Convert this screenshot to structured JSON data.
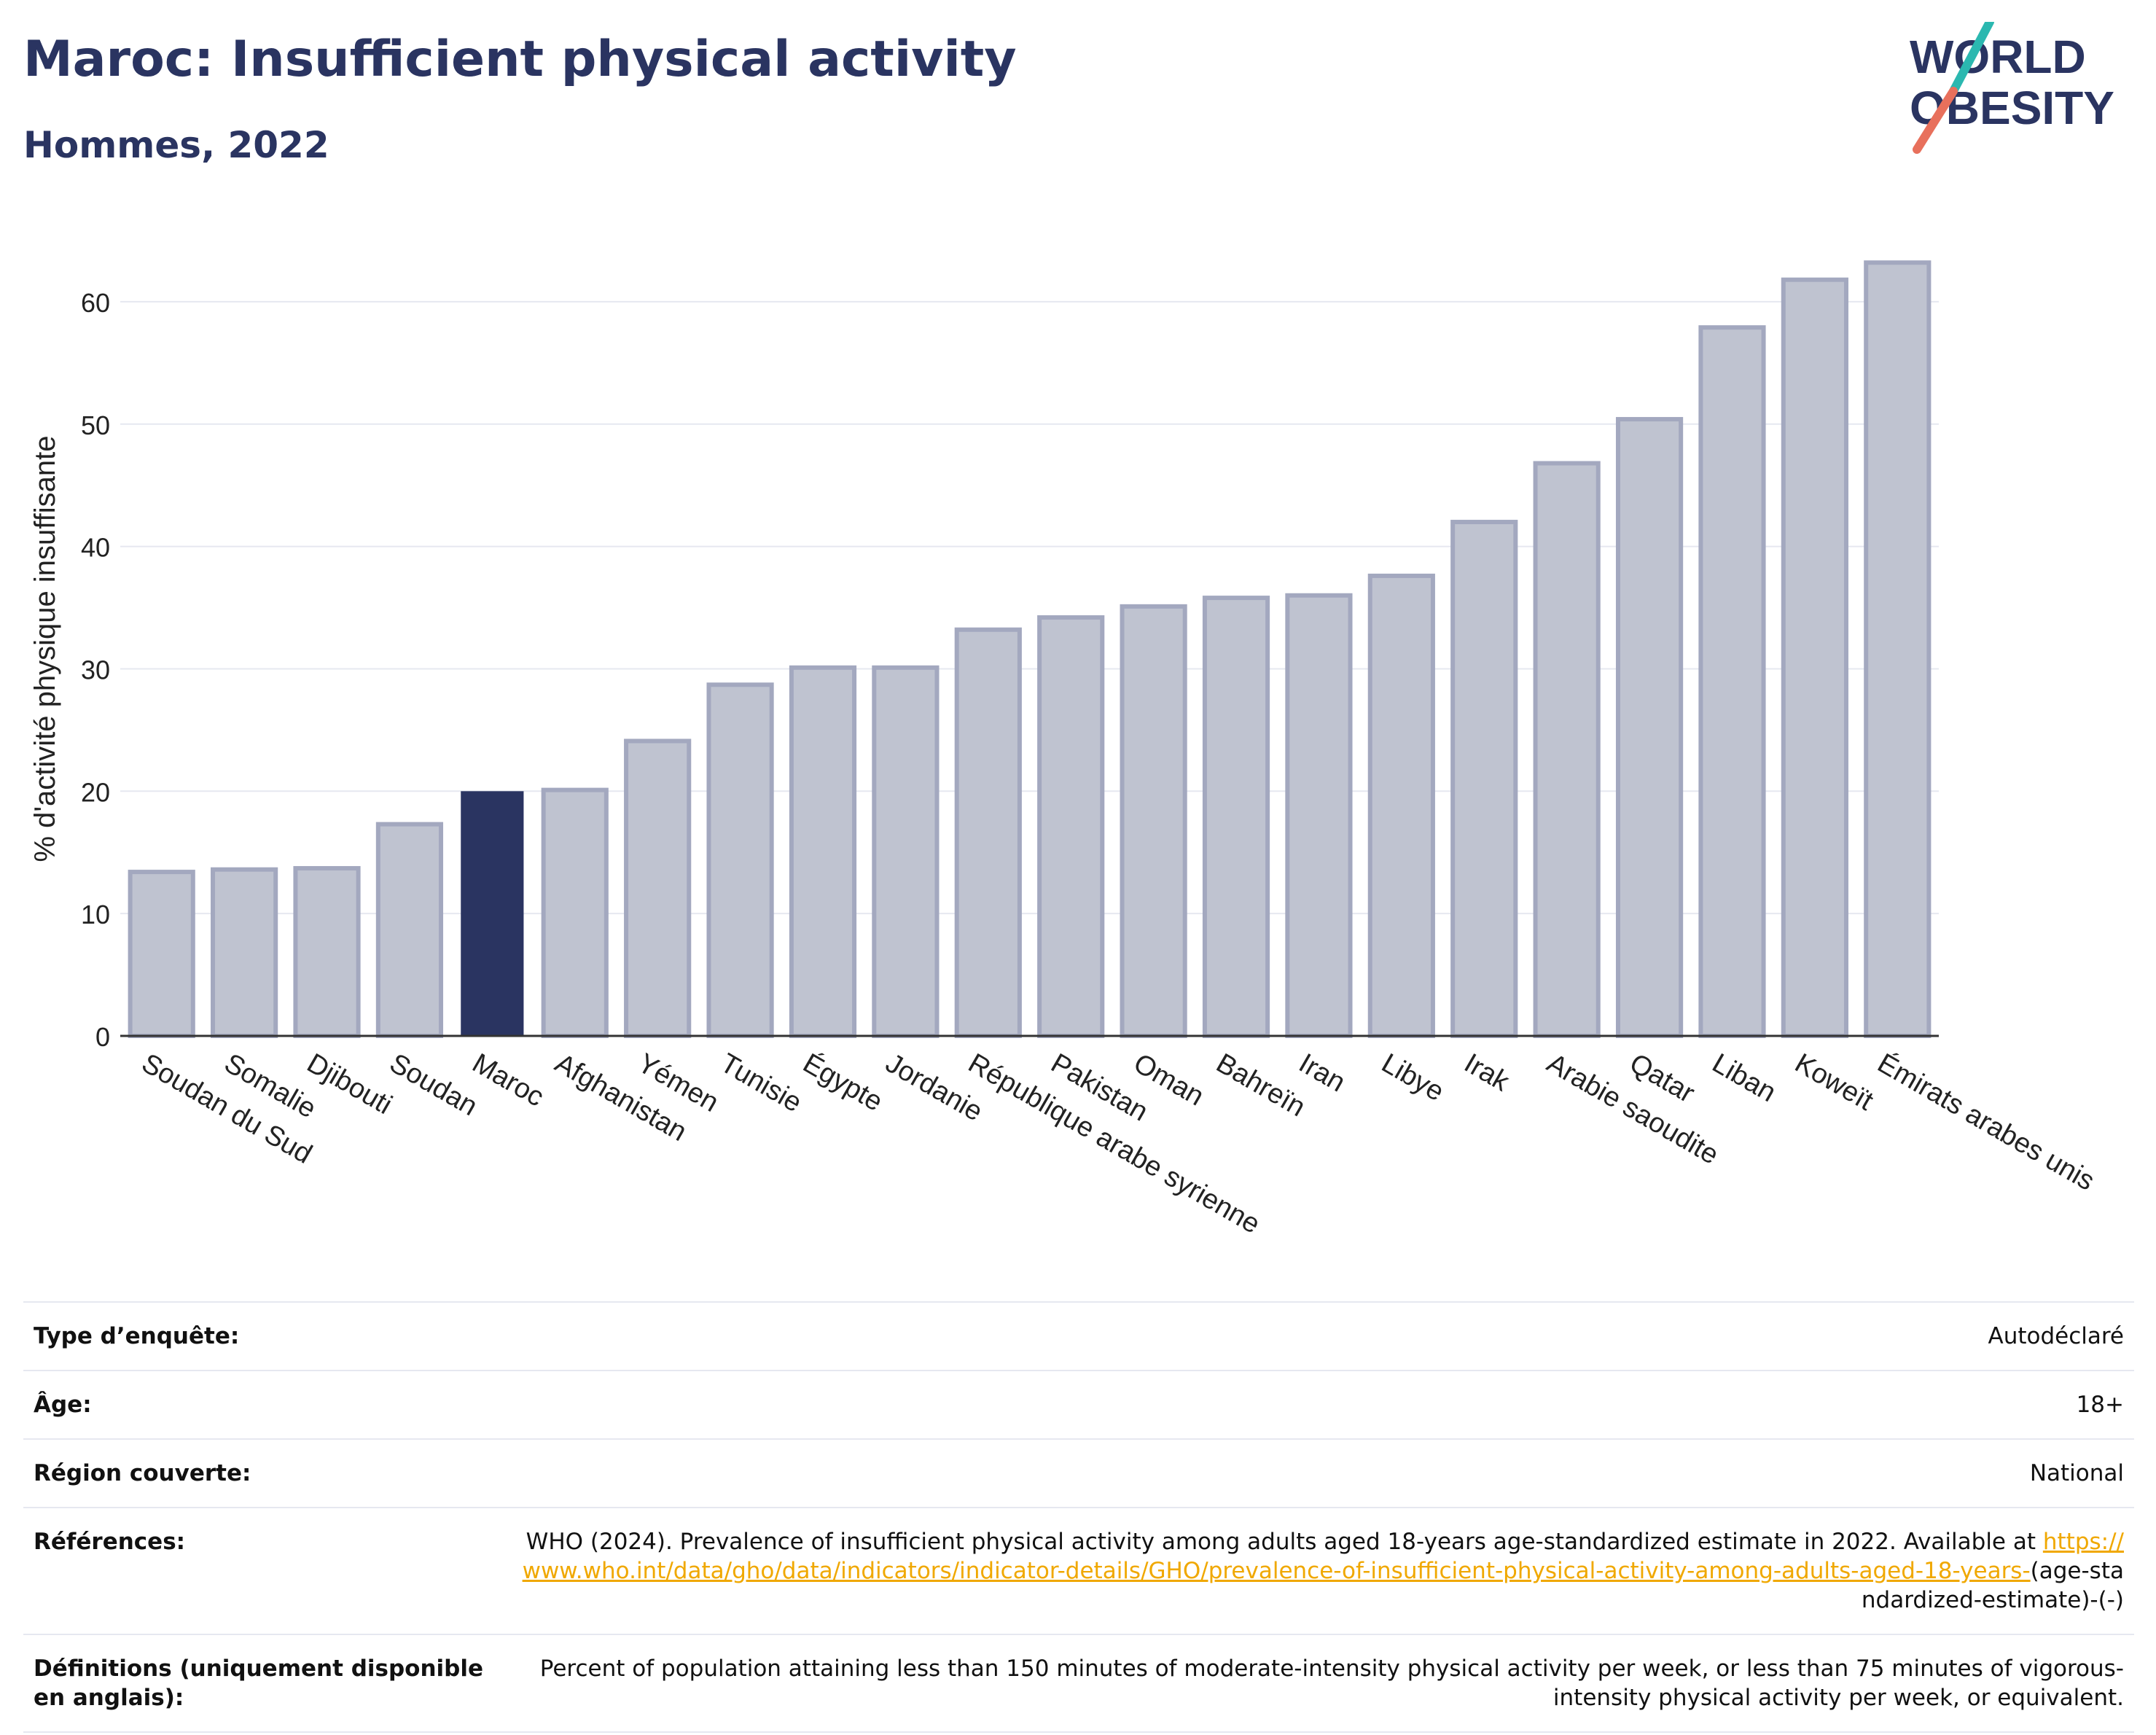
{
  "header": {
    "title": "Maroc: Insufficient physical activity",
    "subtitle": "Hommes, 2022"
  },
  "logo": {
    "line1": "WORLD",
    "line2": "OBESITY"
  },
  "colors": {
    "highlight_bar": "#2a3461",
    "other_bar": "#bfc3d0",
    "other_bar_border": "#a3a8bf",
    "text_dark": "#2a3461",
    "link": "#f0a800",
    "logo_slash_teal": "#2bb8b0",
    "logo_slash_coral": "#e8705c"
  },
  "chart_data": {
    "type": "bar",
    "title": "",
    "xlabel": "",
    "ylabel": "% d'activité physique insuffisante",
    "ylim": [
      0,
      65
    ],
    "yticks": [
      0,
      10,
      20,
      30,
      40,
      50,
      60
    ],
    "grid": true,
    "highlight": "Maroc",
    "categories": [
      "Soudan du Sud",
      "Somalie",
      "Djibouti",
      "Soudan",
      "Maroc",
      "Afghanistan",
      "Yémen",
      "Tunisie",
      "Égypte",
      "Jordanie",
      "République arabe syrienne",
      "Pakistan",
      "Oman",
      "Bahreïn",
      "Iran",
      "Libye",
      "Irak",
      "Arabie saoudite",
      "Qatar",
      "Liban",
      "Koweït",
      "Émirats arabes unis"
    ],
    "values": [
      13.4,
      13.6,
      13.7,
      17.3,
      20.0,
      20.1,
      24.1,
      28.7,
      30.1,
      30.1,
      33.2,
      34.2,
      35.1,
      35.8,
      36.0,
      37.6,
      42.0,
      46.8,
      50.4,
      57.9,
      61.8,
      63.2
    ]
  },
  "meta": [
    {
      "label": "Type d’enquête:",
      "value": "Autodéclaré"
    },
    {
      "label": "Âge:",
      "value": "18+"
    },
    {
      "label": "Région couverte:",
      "value": "National"
    },
    {
      "label": "Références:",
      "value_text": "WHO (2024). Prevalence of insufficient physical activity among adults aged 18-years age-standardized estimate in 2022. Available at",
      "value_link": "https://www.who.int/data/gho/data/indicators/indicator-details/GHO/prevalence-of-insufficient-physical-activity-among-adults-aged-18-years-",
      "value_tail": "(age-standardized-estimate)-(-)"
    },
    {
      "label": "Définitions (uniquement disponible en anglais):",
      "value": "Percent of population attaining less than 150 minutes of moderate-intensity physical activity per week, or less than 75 minutes of vigorous-intensity physical activity per week, or equivalent."
    }
  ]
}
